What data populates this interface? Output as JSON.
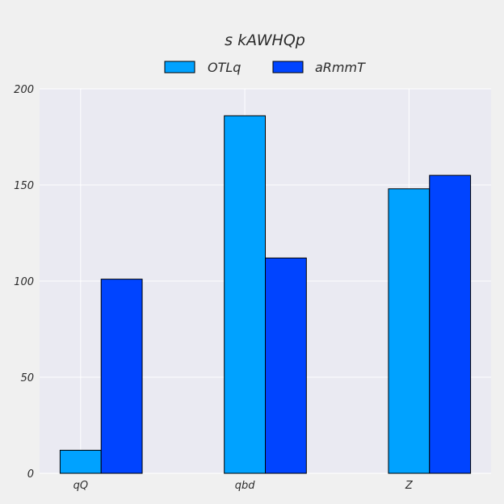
{
  "chart_data": {
    "type": "bar",
    "title": "s kAWHQp",
    "categories": [
      "qQ",
      "qbd",
      "Z"
    ],
    "series": [
      {
        "name": "OTLq",
        "values": [
          12,
          186,
          148
        ]
      },
      {
        "name": "aRmmT",
        "values": [
          101,
          112,
          155
        ]
      }
    ],
    "ylim": [
      0,
      200
    ],
    "yticks": [
      0,
      50,
      100,
      150,
      200
    ],
    "xlabel": "",
    "ylabel": "",
    "grid": true,
    "legend_position": "top-center",
    "colors": {
      "series": [
        "#00a2ff",
        "#0044ff"
      ],
      "plot_background": "#eaeaf2",
      "figure_background": "#f0f0f0",
      "grid": "#ffffff",
      "bar_edge": "#000000",
      "text": "#2b2b2b"
    }
  }
}
